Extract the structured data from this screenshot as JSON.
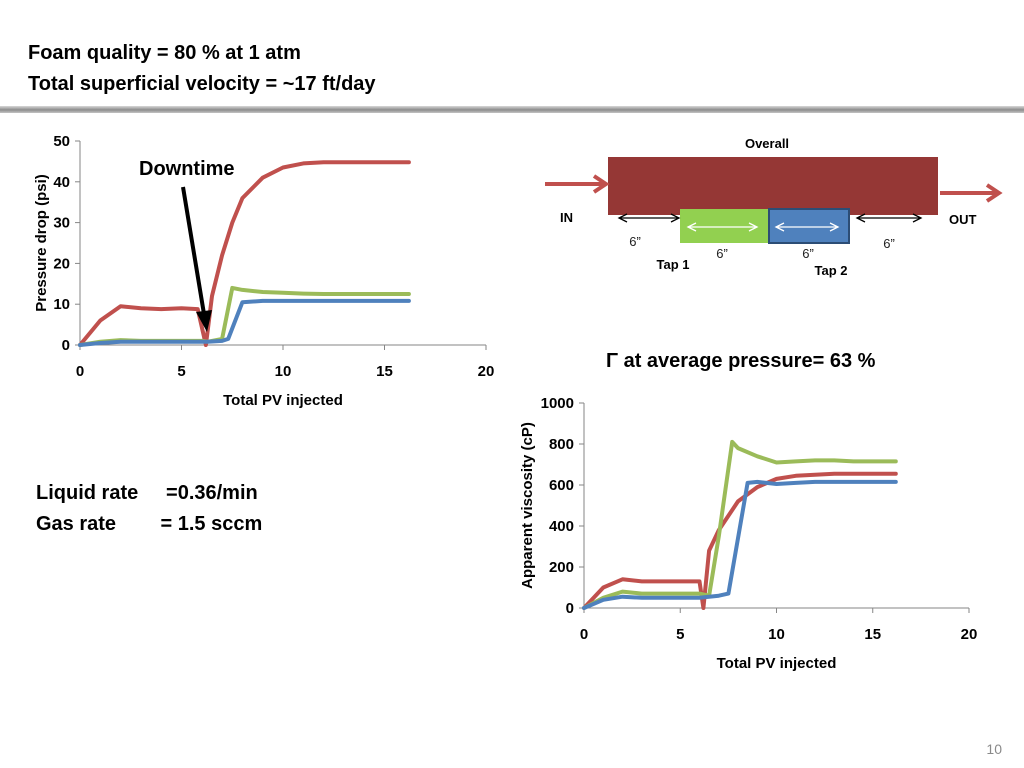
{
  "slide": {
    "title_line1": "Foam quality = 80 % at 1 atm",
    "title_line2": "Total superficial velocity = ~17 ft/day",
    "liquid_rate": "Liquid rate     =0.36/min",
    "gas_rate": "Gas rate        = 1.5 sccm",
    "gamma_text": "Γ at average pressure= 63 %",
    "page_number": "10",
    "annotation": "Downtime"
  },
  "schematic": {
    "overall": "Overall",
    "in": "IN",
    "out": "OUT",
    "tap1": "Tap 1",
    "tap2": "Tap 2",
    "len_left": "6”",
    "len_tap1": "6”",
    "len_tap2": "6”",
    "len_right": "6”",
    "colors": {
      "core": "#953735",
      "tap1": "#92d050",
      "tap2": "#4f81bd",
      "arrow": "#c0504d"
    }
  },
  "chart_data": [
    {
      "type": "line",
      "xlabel": "Total PV injected",
      "ylabel": "Pressure drop (psi)",
      "xlim": [
        0,
        20
      ],
      "ylim": [
        0,
        50
      ],
      "xticks": [
        0,
        5,
        10,
        15,
        20
      ],
      "yticks": [
        0,
        10,
        20,
        30,
        40,
        50
      ],
      "grid": false,
      "series": [
        {
          "color": "#c0504d",
          "x": [
            0,
            1,
            2,
            3,
            4,
            5,
            5.8,
            6.2,
            6.5,
            7,
            7.5,
            8,
            9,
            10,
            11,
            12,
            13,
            14,
            15,
            16.2
          ],
          "y": [
            0,
            6,
            9.5,
            9,
            8.8,
            9,
            8.8,
            0,
            12,
            22,
            30,
            36,
            41,
            43.5,
            44.5,
            44.8,
            44.8,
            44.8,
            44.8,
            44.8
          ]
        },
        {
          "color": "#9bbb59",
          "x": [
            0,
            1,
            2,
            3,
            4,
            5,
            6,
            6.3,
            7,
            7.5,
            8,
            9,
            10,
            11,
            12,
            13,
            14,
            15,
            16.2
          ],
          "y": [
            0,
            0.8,
            1.2,
            1,
            1,
            1,
            1,
            0.8,
            1.5,
            14,
            13.5,
            13,
            12.8,
            12.6,
            12.5,
            12.5,
            12.5,
            12.5,
            12.5
          ]
        },
        {
          "color": "#4f81bd",
          "x": [
            0,
            1,
            2,
            3,
            4,
            5,
            6,
            6.3,
            7,
            7.3,
            8,
            9,
            10,
            11,
            12,
            13,
            14,
            15,
            16.2
          ],
          "y": [
            0,
            0.5,
            0.8,
            0.8,
            0.8,
            0.8,
            0.8,
            0.8,
            1,
            1.5,
            10.5,
            10.8,
            10.8,
            10.8,
            10.8,
            10.8,
            10.8,
            10.8,
            10.8
          ]
        }
      ]
    },
    {
      "type": "line",
      "xlabel": "Total PV injected",
      "ylabel": "Apparent viscosity (cP)",
      "xlim": [
        0,
        20
      ],
      "ylim": [
        0,
        1000
      ],
      "xticks": [
        0,
        5,
        10,
        15,
        20
      ],
      "yticks": [
        0,
        200,
        400,
        600,
        800,
        1000
      ],
      "grid": false,
      "series": [
        {
          "color": "#c0504d",
          "x": [
            0,
            1,
            2,
            3,
            4,
            5,
            6,
            6.2,
            6.5,
            7,
            8,
            9,
            10,
            11,
            12,
            13,
            14,
            15,
            16.2
          ],
          "y": [
            0,
            100,
            140,
            130,
            130,
            130,
            130,
            0,
            280,
            380,
            520,
            590,
            630,
            645,
            650,
            655,
            655,
            655,
            655
          ]
        },
        {
          "color": "#9bbb59",
          "x": [
            0,
            1,
            2,
            3,
            4,
            5,
            6,
            6.5,
            7,
            7.7,
            8,
            9,
            10,
            11,
            12,
            13,
            14,
            15,
            16.2
          ],
          "y": [
            0,
            50,
            80,
            70,
            70,
            70,
            70,
            60,
            350,
            810,
            780,
            740,
            710,
            715,
            720,
            720,
            715,
            715,
            715
          ]
        },
        {
          "color": "#4f81bd",
          "x": [
            0,
            1,
            2,
            3,
            4,
            5,
            6,
            7,
            7.5,
            8.5,
            9,
            10,
            11,
            12,
            13,
            14,
            15,
            16.2
          ],
          "y": [
            0,
            40,
            55,
            50,
            50,
            50,
            50,
            60,
            70,
            610,
            615,
            605,
            610,
            615,
            615,
            615,
            615,
            615
          ]
        }
      ]
    }
  ]
}
